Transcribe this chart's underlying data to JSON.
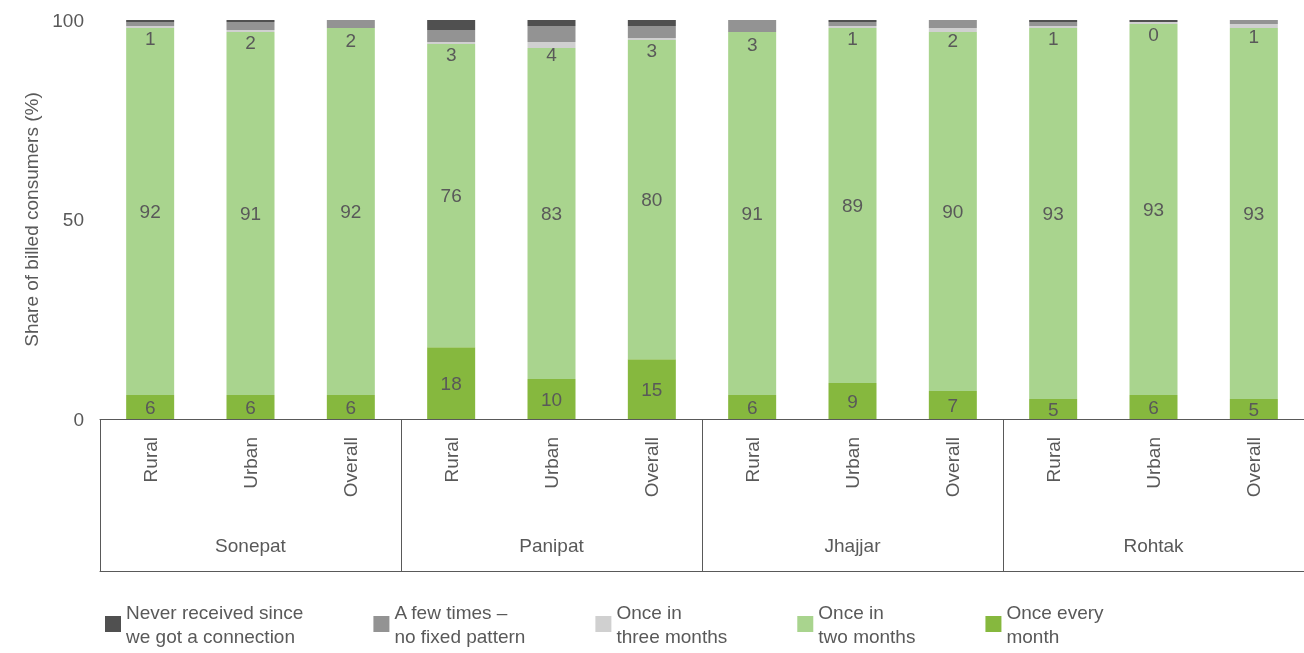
{
  "chart_data": {
    "type": "bar",
    "stacked": true,
    "ylabel": "Share of billed consumers (%)",
    "ylim": [
      0,
      100
    ],
    "yticks": [
      0,
      50,
      100
    ],
    "grid": false,
    "legend": "bottom",
    "categories": [
      "Rural",
      "Urban",
      "Overall",
      "Rural",
      "Urban",
      "Overall",
      "Rural",
      "Urban",
      "Overall",
      "Rural",
      "Urban",
      "Overall"
    ],
    "annotations": [
      "Sonepat",
      "Panipat",
      "Jhajjar",
      "Rohtak"
    ],
    "series": [
      {
        "name": "Once every month",
        "color": "#86b83e",
        "values": [
          6,
          6,
          6,
          18,
          10,
          15,
          6,
          9,
          7,
          5,
          6,
          5
        ],
        "value_labels": [
          "6",
          "6",
          "6",
          "18",
          "10",
          "15",
          "6",
          "9",
          "7",
          "5",
          "6",
          "5"
        ]
      },
      {
        "name": "Once in two months",
        "color": "#a9d48e",
        "values": [
          92,
          91,
          92,
          76,
          83,
          80,
          91,
          89,
          90,
          93,
          93,
          93
        ],
        "value_labels": [
          "92",
          "91",
          "92",
          "76",
          "83",
          "80",
          "91",
          "89",
          "90",
          "93",
          "93",
          "93"
        ]
      },
      {
        "name": "Once in three months",
        "color": "#d0d0d0",
        "values": [
          0.5,
          0.5,
          0,
          0.5,
          1.5,
          0.5,
          0,
          0.5,
          1,
          0.5,
          0.5,
          1
        ]
      },
      {
        "name": "A few times – no fixed pattern",
        "color": "#939393",
        "values": [
          1,
          2,
          2,
          3,
          4,
          3,
          3,
          1,
          2,
          1,
          0,
          1
        ],
        "value_labels": [
          "1",
          "2",
          "2",
          "3",
          "4",
          "3",
          "3",
          "1",
          "2",
          "1",
          "0",
          "1"
        ]
      },
      {
        "name": "Never received since we got a connection",
        "color": "#505050",
        "values": [
          0.5,
          0.5,
          0,
          2.5,
          1.5,
          1.5,
          0,
          0.5,
          0,
          0.5,
          0.5,
          0
        ]
      }
    ]
  }
}
